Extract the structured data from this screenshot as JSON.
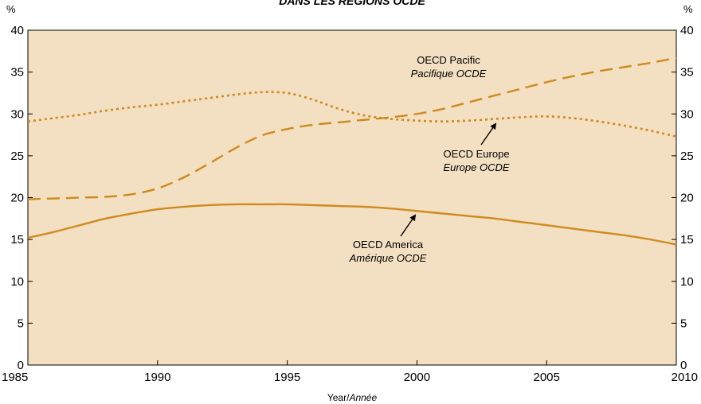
{
  "chart_data": {
    "type": "line",
    "title": "DANS LES RÉGIONS OCDE",
    "xlabel": "Year/",
    "xlabel_italic": "Année",
    "ylabel_left": "%",
    "ylabel_right": "%",
    "xlim": [
      1985,
      2010
    ],
    "ylim": [
      0,
      40
    ],
    "x_ticks": [
      1985,
      1990,
      1995,
      2000,
      2005,
      2010
    ],
    "y_ticks": [
      0,
      5,
      10,
      15,
      20,
      25,
      30,
      35,
      40
    ],
    "grid": false,
    "colors": {
      "background": "#f3dfc1",
      "line": "#cf8a1e",
      "arrow": "#000000"
    },
    "series": [
      {
        "name": "OECD America",
        "name_fr": "Amérique OCDE",
        "style": "solid",
        "x": [
          1985,
          1986,
          1987,
          1988,
          1989,
          1990,
          1991,
          1992,
          1993,
          1994,
          1995,
          1996,
          1997,
          1998,
          1999,
          2000,
          2001,
          2002,
          2003,
          2004,
          2005,
          2006,
          2007,
          2008,
          2009,
          2010
        ],
        "values": [
          15.2,
          15.9,
          16.7,
          17.5,
          18.1,
          18.6,
          18.9,
          19.1,
          19.2,
          19.2,
          19.2,
          19.1,
          19.0,
          18.9,
          18.7,
          18.4,
          18.1,
          17.8,
          17.5,
          17.1,
          16.7,
          16.3,
          15.9,
          15.5,
          15.0,
          14.4
        ]
      },
      {
        "name": "OECD Pacific",
        "name_fr": "Pacifique OCDE",
        "style": "dashed",
        "x": [
          1985,
          1986,
          1987,
          1988,
          1989,
          1990,
          1991,
          1992,
          1993,
          1994,
          1995,
          1996,
          1997,
          1998,
          1999,
          2000,
          2001,
          2002,
          2003,
          2004,
          2005,
          2006,
          2007,
          2008,
          2009,
          2010
        ],
        "values": [
          19.8,
          19.9,
          20.0,
          20.1,
          20.4,
          21.1,
          22.4,
          24.1,
          25.9,
          27.4,
          28.2,
          28.7,
          29.0,
          29.3,
          29.6,
          30.0,
          30.6,
          31.4,
          32.2,
          33.0,
          33.8,
          34.5,
          35.1,
          35.6,
          36.1,
          36.7
        ]
      },
      {
        "name": "OECD Europe",
        "name_fr": "Europe OCDE",
        "style": "dotted",
        "x": [
          1985,
          1986,
          1987,
          1988,
          1989,
          1990,
          1991,
          1992,
          1993,
          1994,
          1995,
          1996,
          1997,
          1998,
          1999,
          2000,
          2001,
          2002,
          2003,
          2004,
          2005,
          2006,
          2007,
          2008,
          2009,
          2010
        ],
        "values": [
          29.1,
          29.5,
          29.9,
          30.4,
          30.8,
          31.1,
          31.5,
          31.9,
          32.3,
          32.6,
          32.5,
          31.7,
          30.6,
          29.8,
          29.4,
          29.2,
          29.1,
          29.2,
          29.4,
          29.6,
          29.7,
          29.5,
          29.1,
          28.6,
          28.0,
          27.3
        ]
      }
    ],
    "annotations": [
      {
        "en": "OECD Pacific",
        "fr": "Pacifique OCDE"
      },
      {
        "en": "OECD Europe",
        "fr": "Europe OCDE"
      },
      {
        "en": "OECD America",
        "fr": "Amérique OCDE"
      }
    ]
  }
}
